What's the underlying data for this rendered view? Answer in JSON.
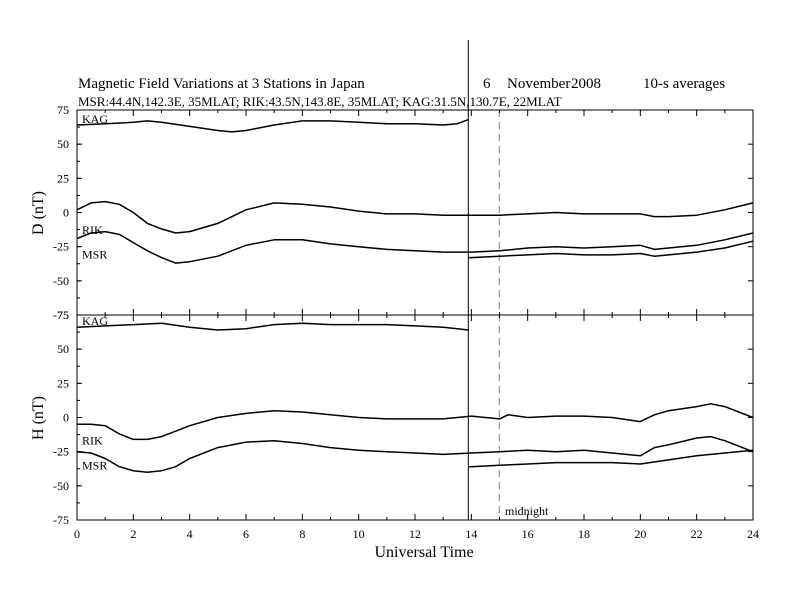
{
  "header": {
    "title": "Magnetic Field Variations at 3 Stations in Japan",
    "date_day": "6",
    "date_month": "November",
    "date_year": "2008",
    "averaging": "10-s averages",
    "stations_line": "MSR:44.4N,142.3E, 35MLAT;   RIK:43.5N,143.8E, 35MLAT;   KAG:31.5N,130.7E, 22MLAT"
  },
  "annotation": {
    "midnight": "midnight"
  },
  "chart_data": [
    {
      "type": "line",
      "panel": "D",
      "ylabel": "D (nT)",
      "xlabel": "",
      "xlim": [
        0,
        24
      ],
      "ylim": [
        -75,
        75
      ],
      "yticks": [
        75,
        50,
        25,
        0,
        -25,
        -50,
        -75
      ],
      "xticks": [],
      "grid": false,
      "series": [
        {
          "name": "KAG",
          "x": [
            0,
            1,
            2,
            2.5,
            3,
            4,
            5,
            5.5,
            6,
            7,
            8,
            9,
            10,
            11,
            12,
            13,
            13.5,
            13.9
          ],
          "y": [
            64,
            65,
            66,
            67,
            66,
            63,
            60,
            59,
            60,
            64,
            67,
            67,
            66,
            65,
            65,
            64,
            65,
            68
          ]
        },
        {
          "name": "RIK",
          "x": [
            0,
            0.5,
            1,
            1.5,
            2,
            2.5,
            3,
            3.5,
            4,
            5,
            6,
            7,
            8,
            9,
            10,
            11,
            12,
            13,
            14,
            15,
            16,
            17,
            18,
            19,
            20,
            20.5,
            21,
            22,
            23,
            24
          ],
          "y": [
            2,
            7,
            8,
            6,
            0,
            -8,
            -12,
            -15,
            -14,
            -8,
            2,
            7,
            6,
            4,
            1,
            -1,
            -1,
            -2,
            -2,
            -2,
            -1,
            0,
            -1,
            -1,
            -1,
            -3,
            -3,
            -2,
            2,
            7
          ]
        },
        {
          "name": "MSR",
          "x": [
            0,
            0.5,
            1,
            1.5,
            2,
            2.5,
            3,
            3.5,
            4,
            5,
            6,
            7,
            8,
            9,
            10,
            11,
            12,
            13,
            14,
            15,
            16,
            17,
            18,
            19,
            20,
            20.5,
            21,
            22,
            23,
            24
          ],
          "y": [
            -19,
            -15,
            -14,
            -16,
            -22,
            -28,
            -33,
            -37,
            -36,
            -32,
            -24,
            -20,
            -20,
            -23,
            -25,
            -27,
            -28,
            -29,
            -29,
            -28,
            -26,
            -25,
            -26,
            -25,
            -24,
            -27,
            -26,
            -24,
            -20,
            -15
          ]
        },
        {
          "name": "",
          "x": [
            13.9,
            14,
            15,
            16,
            17,
            18,
            19,
            20,
            20.5,
            21,
            22,
            23,
            24
          ],
          "y": [
            -33,
            -33,
            -32,
            -31,
            -30,
            -31,
            -31,
            -30,
            -32,
            -31,
            -29,
            -26,
            -21
          ]
        }
      ],
      "station_labels": [
        "KAG",
        "RIK",
        "MSR"
      ]
    },
    {
      "type": "line",
      "panel": "H",
      "ylabel": "H (nT)",
      "xlabel": "Universal Time",
      "xlim": [
        0,
        24
      ],
      "ylim": [
        -75,
        75
      ],
      "yticks": [
        75,
        50,
        25,
        0,
        -25,
        -50,
        -75
      ],
      "xticks": [
        0,
        2,
        4,
        6,
        8,
        10,
        12,
        14,
        16,
        18,
        20,
        22,
        24
      ],
      "grid": false,
      "series": [
        {
          "name": "KAG",
          "x": [
            0,
            1,
            2,
            3,
            4,
            5,
            6,
            7,
            8,
            9,
            10,
            11,
            12,
            13,
            13.5,
            13.9
          ],
          "y": [
            66,
            67,
            68,
            69,
            66,
            64,
            65,
            68,
            69,
            68,
            68,
            68,
            67,
            66,
            65,
            64
          ]
        },
        {
          "name": "RIK",
          "x": [
            0,
            0.5,
            1,
            1.5,
            2,
            2.5,
            3,
            3.5,
            4,
            5,
            6,
            7,
            8,
            9,
            10,
            11,
            12,
            13,
            14,
            15,
            15.3,
            16,
            17,
            18,
            19,
            20,
            20.5,
            21,
            22,
            22.5,
            23,
            24
          ],
          "y": [
            -5,
            -5,
            -6,
            -12,
            -16,
            -16,
            -14,
            -10,
            -6,
            0,
            3,
            5,
            4,
            2,
            0,
            -1,
            -1,
            -1,
            1,
            -1,
            2,
            0,
            1,
            1,
            0,
            -3,
            2,
            5,
            8,
            10,
            8,
            0
          ]
        },
        {
          "name": "MSR",
          "x": [
            0,
            0.5,
            1,
            1.5,
            2,
            2.5,
            3,
            3.5,
            4,
            5,
            6,
            7,
            8,
            9,
            10,
            11,
            12,
            13,
            14,
            15,
            16,
            17,
            18,
            19,
            20,
            20.5,
            21,
            22,
            22.5,
            23,
            24
          ],
          "y": [
            -25,
            -26,
            -30,
            -36,
            -39,
            -40,
            -39,
            -36,
            -30,
            -22,
            -18,
            -17,
            -19,
            -22,
            -24,
            -25,
            -26,
            -27,
            -26,
            -25,
            -24,
            -25,
            -24,
            -26,
            -28,
            -22,
            -20,
            -15,
            -14,
            -17,
            -25
          ]
        },
        {
          "name": "",
          "x": [
            13.9,
            14,
            15,
            16,
            17,
            18,
            19,
            20,
            21,
            22,
            23,
            24
          ],
          "y": [
            -36,
            -36,
            -35,
            -34,
            -33,
            -33,
            -33,
            -34,
            -31,
            -28,
            -26,
            -24
          ]
        }
      ],
      "station_labels": [
        "KAG",
        "RIK",
        "MSR"
      ]
    }
  ]
}
